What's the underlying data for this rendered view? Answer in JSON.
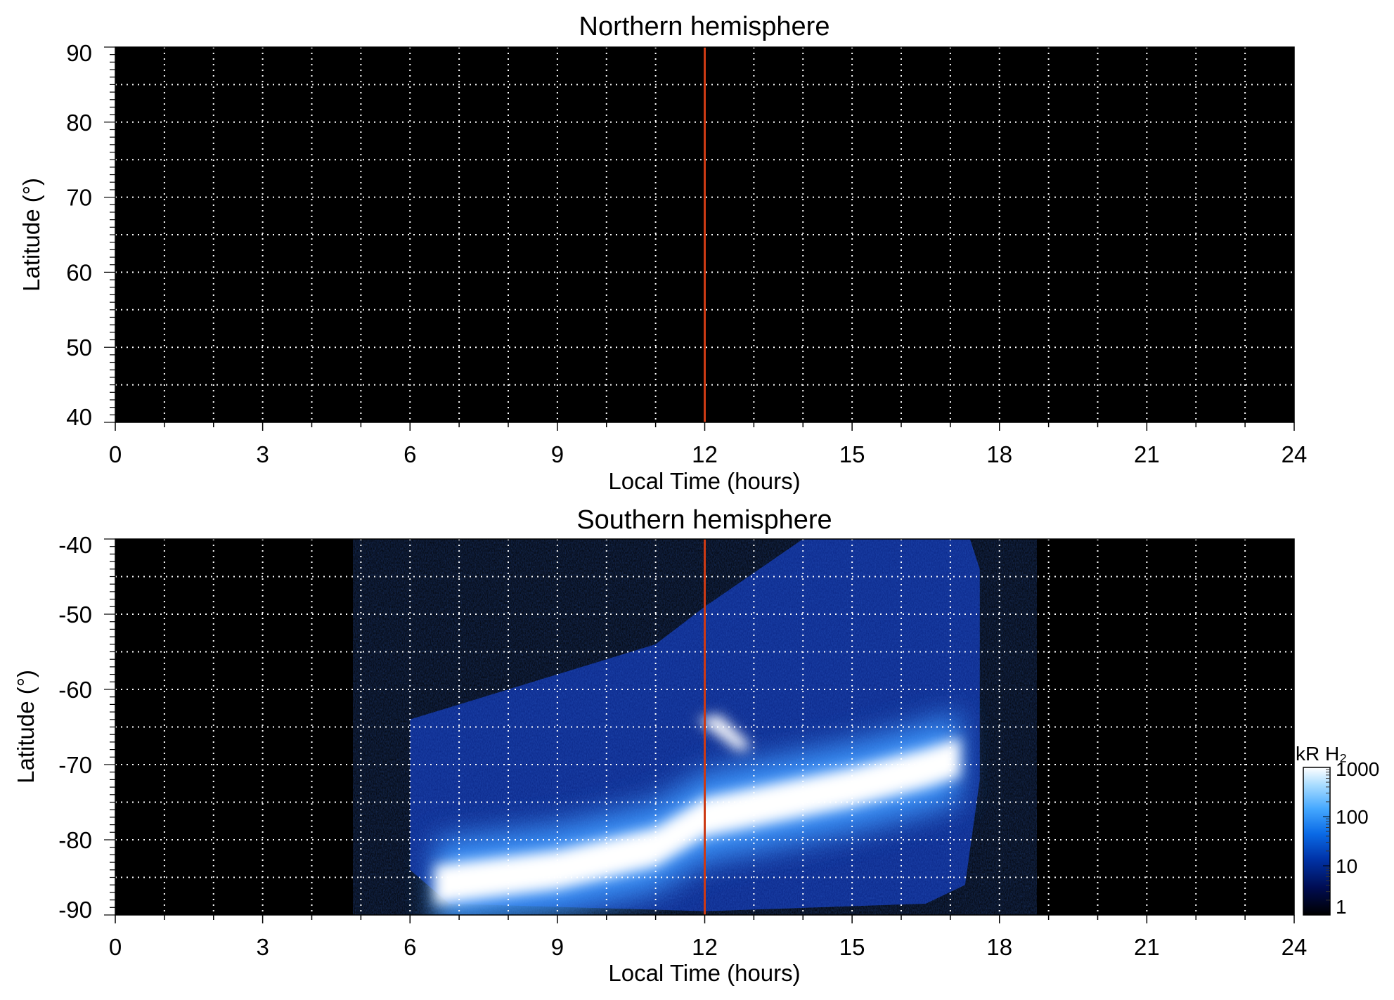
{
  "chart_data": [
    {
      "type": "heatmap",
      "title": "Northern hemisphere",
      "xlabel": "Local Time (hours)",
      "ylabel": "Latitude (°)",
      "xlim": [
        0,
        24
      ],
      "ylim": [
        40,
        90
      ],
      "x_ticks": [
        "0",
        "3",
        "6",
        "9",
        "12",
        "15",
        "18",
        "21",
        "24"
      ],
      "y_ticks": [
        "40",
        "50",
        "60",
        "70",
        "80",
        "90"
      ],
      "grid": true,
      "background": "#000000",
      "noon_line": {
        "x": 12,
        "color": "#cc3a14"
      },
      "emission": []
    },
    {
      "type": "heatmap",
      "title": "Southern hemisphere",
      "xlabel": "Local Time (hours)",
      "ylabel": "Latitude (°)",
      "xlim": [
        0,
        24
      ],
      "ylim": [
        -90,
        -40
      ],
      "x_ticks": [
        "0",
        "3",
        "6",
        "9",
        "12",
        "15",
        "18",
        "21",
        "24"
      ],
      "y_ticks": [
        "-90",
        "-80",
        "-70",
        "-60",
        "-50",
        "-40"
      ],
      "grid": true,
      "background": "#000000",
      "noon_line": {
        "x": 12,
        "color": "#cc3a14"
      },
      "coverage_region": {
        "lt_range": [
          6,
          17.6
        ],
        "boundary": [
          [
            6,
            -64
          ],
          [
            9,
            -58
          ],
          [
            11,
            -54
          ],
          [
            12,
            -49
          ],
          [
            14,
            -40
          ],
          [
            17.4,
            -40
          ],
          [
            17.6,
            -44
          ],
          [
            17.6,
            -72
          ],
          [
            17.3,
            -86
          ],
          [
            16.5,
            -88.5
          ],
          [
            12,
            -89.5
          ],
          [
            6.8,
            -88.5
          ],
          [
            6,
            -84
          ]
        ]
      },
      "emission_bands": [
        {
          "name": "main_oval",
          "points": [
            [
              6.5,
              -86
            ],
            [
              9,
              -84
            ],
            [
              11,
              -81
            ],
            [
              12,
              -77
            ],
            [
              13.5,
              -75
            ],
            [
              15,
              -73
            ],
            [
              16.5,
              -70.5
            ],
            [
              17.2,
              -69
            ]
          ],
          "intensity_kR": 1000
        },
        {
          "name": "cusp_spot",
          "points": [
            [
              12,
              -64
            ],
            [
              12.5,
              -67
            ]
          ],
          "intensity_kR": 1000
        }
      ],
      "colorbar": {
        "label": "kR H₂",
        "scale": "log",
        "range": [
          1,
          1000
        ],
        "tick_labels": [
          "1",
          "10",
          "100",
          "1000"
        ],
        "colors": [
          "#000000",
          "#000c50",
          "#0033a8",
          "#0a6ae6",
          "#45a8ff",
          "#a8dcff",
          "#ffffff"
        ]
      }
    }
  ]
}
